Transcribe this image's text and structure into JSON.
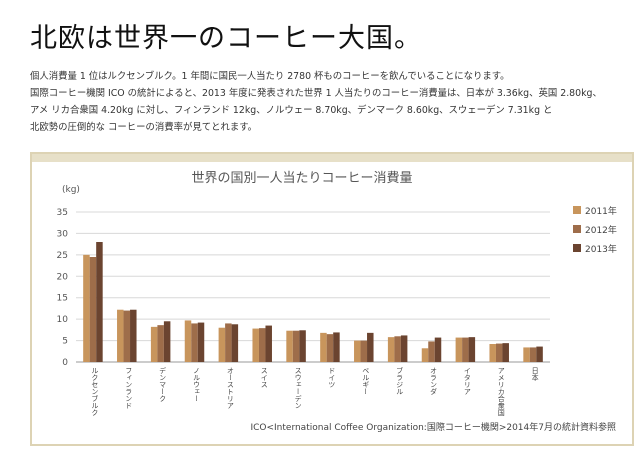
{
  "heading": "北欧は世界一のコーヒー大国。",
  "paragraph": [
    "個人消費量 1 位はルクセンブルク。1 年間に国民一人当たり 2780 杯ものコーヒーを飲んでいることになります。",
    "国際コーヒー機関 ICO の統計によると、2013 年度に発表された世界 1 人当たりのコーヒー消費量は、日本が 3.36kg、英国 2.80kg、",
    "アメ リカ合衆国 4.20kg に対し、フィンランド 12kg、ノルウェー 8.70kg、デンマーク 8.60kg、スウェーデン 7.31kg と",
    "北欧勢の圧倒的な コーヒーの消費率が見てとれます。"
  ],
  "colors": {
    "2011": "#c8955c",
    "2012": "#9e6d4a",
    "2013": "#6b4430",
    "frame": "#ddd3b4",
    "title_bar": "#e7e0c8"
  },
  "chart_data": {
    "type": "bar",
    "title": "世界の国別一人当たりコーヒー消費量",
    "ylabel": "(kg)",
    "ylim": [
      0,
      35
    ],
    "yticks": [
      0,
      5,
      10,
      15,
      20,
      25,
      30,
      35
    ],
    "grid": true,
    "legend_position": "right",
    "categories": [
      "ルクセンブルク",
      "フィンランド",
      "デンマーク",
      "ノルウェー",
      "オーストリア",
      "スイス",
      "スウェーデン",
      "ドイツ",
      "ベルギー",
      "ブラジル",
      "オランダ",
      "イタリア",
      "アメリカ合衆国",
      "日本"
    ],
    "series": [
      {
        "name": "2011年",
        "values": [
          25.0,
          12.2,
          8.2,
          9.7,
          8.0,
          7.8,
          7.3,
          6.8,
          5.0,
          5.8,
          3.2,
          5.7,
          4.2,
          3.4
        ]
      },
      {
        "name": "2012年",
        "values": [
          24.5,
          12.0,
          8.6,
          9.0,
          9.0,
          7.9,
          7.3,
          6.5,
          5.0,
          6.0,
          4.8,
          5.7,
          4.3,
          3.4
        ]
      },
      {
        "name": "2013年",
        "values": [
          28.0,
          12.2,
          9.5,
          9.2,
          8.8,
          8.5,
          7.4,
          6.9,
          6.8,
          6.2,
          5.7,
          5.8,
          4.4,
          3.6
        ]
      }
    ],
    "source_note": "ICO<International Coffee Organization:国際コーヒー機関>2014年7月の統計資料参照"
  }
}
